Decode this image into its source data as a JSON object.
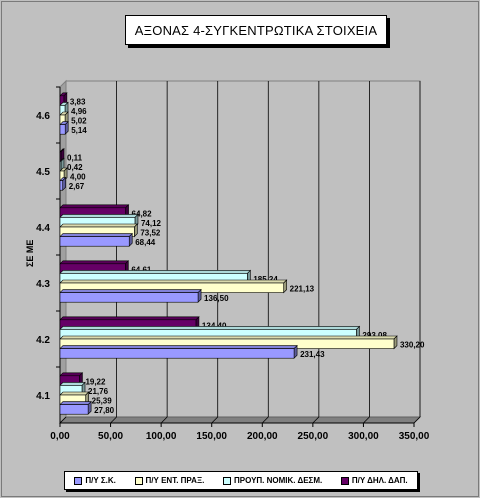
{
  "chart_data": {
    "type": "bar",
    "orientation": "horizontal",
    "title": "ΑΞΟΝΑΣ 4-ΣΥΓΚΕΝΤΡΩΤΙΚΑ ΣΤΟΙΧΕΙΑ",
    "ylabel": "ΣΕ ΜΕ",
    "xlabel": "",
    "categories": [
      "4.1",
      "4.2",
      "4.3",
      "4.4",
      "4.5",
      "4.6"
    ],
    "xlim": [
      0,
      350
    ],
    "xticks": [
      "0,00",
      "50,00",
      "100,00",
      "150,00",
      "200,00",
      "250,00",
      "300,00",
      "350,00"
    ],
    "grid": true,
    "legend_position": "bottom",
    "series": [
      {
        "name": "Π/Υ Σ.Κ.",
        "color": "#9999ff",
        "values": [
          27.8,
          231.43,
          136.5,
          68.44,
          2.67,
          5.14
        ],
        "labels": [
          "27,80",
          "231,43",
          "136,50",
          "68,44",
          "2,67",
          "5,14"
        ]
      },
      {
        "name": "Π/Υ ΕΝΤ. ΠΡΑΞ.",
        "color": "#ffffcc",
        "values": [
          25.39,
          330.2,
          221.13,
          73.52,
          4.0,
          5.02
        ],
        "labels": [
          "25,39",
          "330,20",
          "221,13",
          "73,52",
          "4,00",
          "5,02"
        ]
      },
      {
        "name": "ΠΡΟΥΠ. ΝΟΜΙΚ. ΔΕΣΜ.",
        "color": "#ccffff",
        "values": [
          21.76,
          293.08,
          185.24,
          74.12,
          0.42,
          4.96
        ],
        "labels": [
          "21,76",
          "293,08",
          "185,24",
          "74,12",
          "0,42",
          "4,96"
        ]
      },
      {
        "name": "Π/Υ ΔΗΛ. ΔΑΠ.",
        "color": "#660066",
        "values": [
          19.22,
          134.4,
          64.61,
          64.82,
          0.11,
          3.83
        ],
        "labels": [
          "19,22",
          "134,40",
          "64,61",
          "64,82",
          "0,11",
          "3,83"
        ]
      }
    ]
  }
}
